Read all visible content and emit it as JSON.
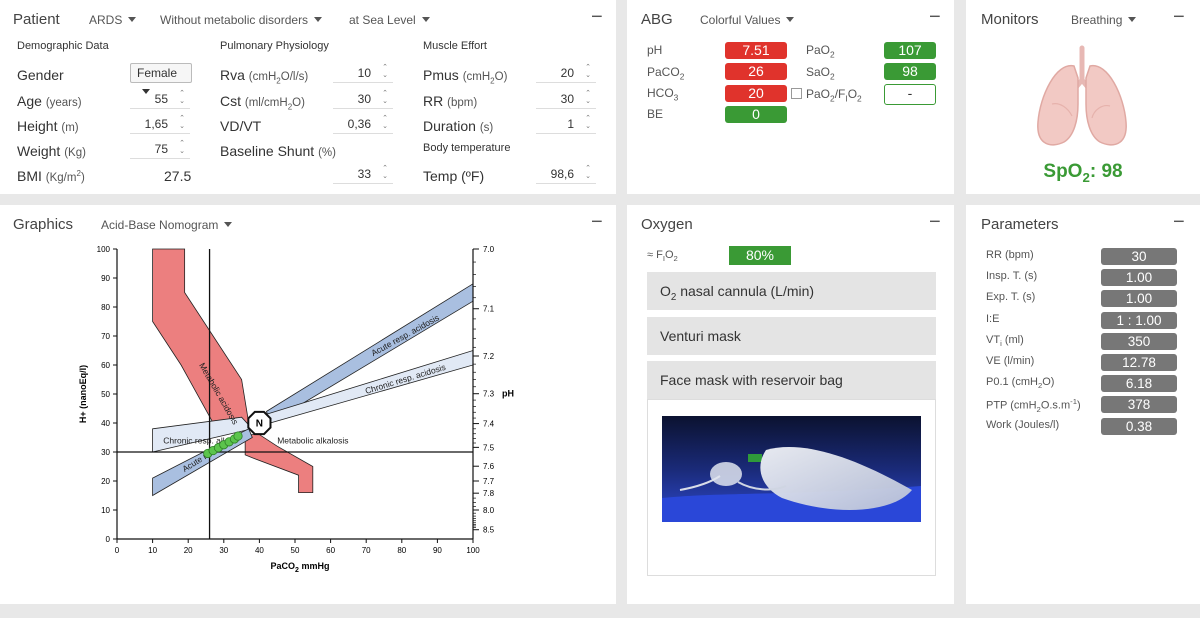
{
  "patient": {
    "title": "Patient",
    "dropdowns": [
      "ARDS",
      "Without metabolic disorders",
      "at Sea Level"
    ],
    "demo_header": "Demographic Data",
    "pulm_header": "Pulmonary Physiology",
    "muscle_header": "Muscle Effort",
    "body_temp_header": "Body temperature",
    "gender_label": "Gender",
    "gender_value": "Female",
    "age_label": "Age",
    "age_unit": "(years)",
    "age_value": "55",
    "height_label": "Height",
    "height_unit": "(m)",
    "height_value": "1,65",
    "weight_label": "Weight",
    "weight_unit": "(Kg)",
    "weight_value": "75",
    "bmi_label": "BMI",
    "bmi_unit_a": "(Kg/m",
    "bmi_unit_sup": "2",
    "bmi_unit_b": ")",
    "bmi_value": "27.5",
    "rva_label": "Rva",
    "rva_unit_a": "(cmH",
    "rva_unit_sub": "2",
    "rva_unit_b": "O/l/s)",
    "rva_value": "10",
    "cst_label": "Cst",
    "cst_unit_a": "(ml/cmH",
    "cst_unit_sub": "2",
    "cst_unit_b": "O)",
    "cst_value": "30",
    "vdvt_label": "VD/VT",
    "vdvt_value": "0,36",
    "shunt_label": "Baseline Shunt",
    "shunt_unit": "(%)",
    "shunt_value": "33",
    "pmus_label": "Pmus",
    "pmus_unit_a": "(cmH",
    "pmus_unit_sub": "2",
    "pmus_unit_b": "O)",
    "pmus_value": "20",
    "rr_label": "RR",
    "rr_unit": "(bpm)",
    "rr_value": "30",
    "dur_label": "Duration",
    "dur_unit": "(s)",
    "dur_value": "1",
    "temp_label": "Temp (ºF)",
    "temp_value": "98,6"
  },
  "abg": {
    "title": "ABG",
    "dropdown": "Colorful Values",
    "ph_label": "pH",
    "ph_value": "7.51",
    "paco2_a": "PaCO",
    "paco2_sub": "2",
    "paco2_value": "26",
    "hco3_a": "HCO",
    "hco3_sub": "3",
    "hco3_value": "20",
    "be_label": "BE",
    "be_value": "0",
    "pao2_a": "PaO",
    "pao2_sub": "2",
    "pao2_value": "107",
    "sao2_a": "SaO",
    "sao2_sub": "2",
    "sao2_value": "98",
    "ratio_a": "PaO",
    "ratio_sub1": "2",
    "ratio_b": "/F",
    "ratio_c": "I",
    "ratio_d": "O",
    "ratio_sub2": "2",
    "ratio_value": "-"
  },
  "monitors": {
    "title": "Monitors",
    "dropdown": "Breathing",
    "spo2_a": "SpO",
    "spo2_sub": "2",
    "spo2_b": ": 98"
  },
  "graphics": {
    "title": "Graphics",
    "dropdown": "Acid-Base Nomogram"
  },
  "oxygen": {
    "title": "Oxygen",
    "fio2_a": "≈ F",
    "fio2_sub1": "I",
    "fio2_b": "O",
    "fio2_sub2": "2",
    "fio2_value": "80%",
    "opt1_a": "O",
    "opt1_sub": "2",
    "opt1_b": " nasal cannula (L/min)",
    "opt2": "Venturi mask",
    "opt3": "Face mask with reservoir bag"
  },
  "parameters": {
    "title": "Parameters",
    "items": [
      {
        "a": "RR (bpm)",
        "sub": "",
        "b": "",
        "sup": "",
        "c": "",
        "value": "30"
      },
      {
        "a": "Insp. T. (s)",
        "sub": "",
        "b": "",
        "sup": "",
        "c": "",
        "value": "1.00"
      },
      {
        "a": "Exp. T. (s)",
        "sub": "",
        "b": "",
        "sup": "",
        "c": "",
        "value": "1.00"
      },
      {
        "a": "I:E",
        "sub": "",
        "b": "",
        "sup": "",
        "c": "",
        "value": "1 : 1.00"
      },
      {
        "a": "VT",
        "sub": "i",
        "b": " (ml)",
        "sup": "",
        "c": "",
        "value": "350"
      },
      {
        "a": "VE (l/min)",
        "sub": "",
        "b": "",
        "sup": "",
        "c": "",
        "value": "12.78"
      },
      {
        "a": "P0.1 (cmH",
        "sub": "2",
        "b": "O)",
        "sup": "",
        "c": "",
        "value": "6.18"
      },
      {
        "a": "PTP (cmH",
        "sub": "2",
        "b": "O.s.m",
        "sup": "-1",
        "c": ")",
        "value": "378"
      },
      {
        "a": "Work (Joules/l)",
        "sub": "",
        "b": "",
        "sup": "",
        "c": "",
        "value": "0.38"
      }
    ]
  },
  "chart_data": {
    "type": "scatter",
    "xlabel_a": "PaCO",
    "xlabel_sub": "2",
    "xlabel_b": " mmHg",
    "ylabel": "H+ (nanoEq/l)",
    "y2label": "pH",
    "xlim": [
      0,
      100
    ],
    "ylim": [
      0,
      100
    ],
    "x_ticks": [
      0,
      10,
      20,
      30,
      40,
      50,
      60,
      70,
      80,
      90,
      100
    ],
    "y_ticks": [
      0,
      10,
      20,
      30,
      40,
      50,
      60,
      70,
      80,
      90,
      100
    ],
    "ph_ticks": [
      {
        "label": "7.0",
        "h": 100
      },
      {
        "label": "7.1",
        "h": 79.4
      },
      {
        "label": "7.2",
        "h": 63.1
      },
      {
        "label": "7.3",
        "h": 50.1
      },
      {
        "label": "7.4",
        "h": 39.8
      },
      {
        "label": "7.5",
        "h": 31.6
      },
      {
        "label": "7.6",
        "h": 25.1
      },
      {
        "label": "7.7",
        "h": 20
      },
      {
        "label": "7.8",
        "h": 15.8
      },
      {
        "label": "8.0",
        "h": 10
      },
      {
        "label": "8.5",
        "h": 3.2
      }
    ],
    "ph_minor": [
      95.5,
      91.2,
      87.1,
      83.2,
      75.9,
      72.4,
      69.2,
      66.1,
      60.3,
      57.5,
      55,
      52.5,
      47.9,
      45.7,
      43.7,
      41.7,
      38,
      36.3,
      34.7,
      33.1,
      14.1,
      12.6,
      11.2,
      8.9,
      7.9,
      7.1,
      6.3,
      5.6,
      5,
      4.5,
      4
    ],
    "zones": [
      {
        "name": "Metabolic acidosis",
        "fill": "#ec7f7f",
        "points": [
          [
            10,
            100
          ],
          [
            19,
            100
          ],
          [
            19,
            85
          ],
          [
            35,
            55
          ],
          [
            37,
            40
          ],
          [
            27,
            40
          ],
          [
            18,
            60
          ],
          [
            10,
            75
          ]
        ],
        "label": "Metabolic acidosis",
        "label_at": [
          23,
          60
        ],
        "label_rot": 60
      },
      {
        "name": "Metabolic alkalosis",
        "fill": "#ec7f7f",
        "points": [
          [
            36,
            36
          ],
          [
            40,
            36
          ],
          [
            45,
            32
          ],
          [
            55,
            25
          ],
          [
            55,
            16
          ],
          [
            51,
            16
          ],
          [
            51,
            22
          ],
          [
            38,
            28
          ],
          [
            36,
            29
          ]
        ],
        "label": "Metabolic alkalosis",
        "label_at": [
          45,
          33
        ],
        "label_rot": 0
      },
      {
        "name": "Acute resp. acidosis",
        "fill": "#a9bfe0",
        "points": [
          [
            42,
            44
          ],
          [
            100,
            88
          ],
          [
            100,
            82
          ],
          [
            43,
            40
          ]
        ],
        "label": "Acute resp. acidosis",
        "label_at": [
          72,
          63
        ],
        "label_rot": -29
      },
      {
        "name": "Chronic resp. acidosis",
        "fill": "#e1e9f5",
        "points": [
          [
            42,
            43
          ],
          [
            100,
            65
          ],
          [
            100,
            60
          ],
          [
            43,
            40
          ]
        ],
        "label": "Chronic resp. acidosis",
        "label_at": [
          70,
          50
        ],
        "label_rot": -17
      },
      {
        "name": "Chronic resp. alk",
        "fill": "#e1e9f5",
        "points": [
          [
            10,
            38
          ],
          [
            35,
            42
          ],
          [
            38,
            38
          ],
          [
            10,
            30
          ]
        ],
        "label": "Chronic resp. alk",
        "label_at": [
          13,
          33
        ],
        "label_rot": 0
      },
      {
        "name": "Acute resp. alk",
        "fill": "#a9bfe0",
        "points": [
          [
            10,
            21
          ],
          [
            37,
            38
          ],
          [
            38,
            35
          ],
          [
            10,
            15
          ]
        ],
        "label": "Acute re",
        "label_at": [
          19,
          23
        ],
        "label_rot": -32
      }
    ],
    "normal_label": "N",
    "marker_lines": {
      "x": 26,
      "y": 30
    },
    "points": [
      [
        25.5,
        29.5
      ],
      [
        27,
        30.5
      ],
      [
        28.5,
        31.5
      ],
      [
        30,
        32.5
      ],
      [
        31.5,
        33.5
      ],
      [
        33,
        34.5
      ],
      [
        34,
        35.5
      ]
    ]
  }
}
